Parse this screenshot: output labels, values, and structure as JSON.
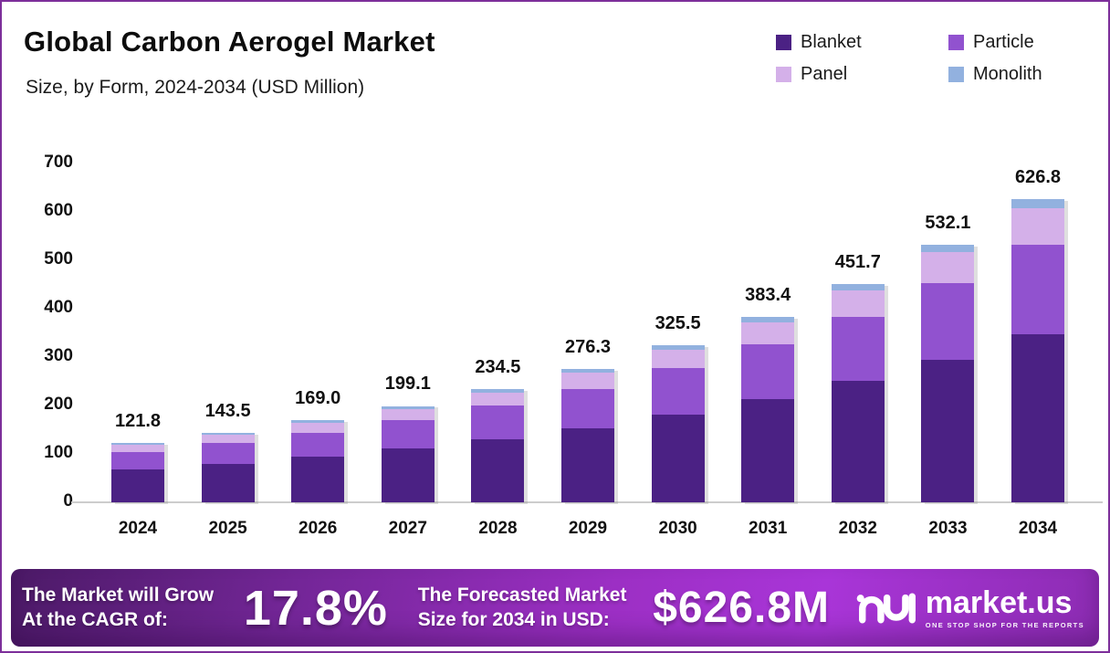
{
  "header": {
    "title": "Global Carbon Aerogel Market",
    "subtitle": "Size, by Form, 2024-2034 (USD Million)"
  },
  "colors": {
    "blanket": "#4b2184",
    "particle": "#9152cf",
    "panel": "#d4b0e9",
    "monolith": "#92b1df",
    "axis_line": "#cdcdcd",
    "border": "#7d2f9a",
    "footer_gradient_start": "#4c1a67",
    "footer_gradient_end": "#a935d8"
  },
  "chart_data": {
    "type": "bar",
    "stacked": true,
    "title": "Global Carbon Aerogel Market",
    "subtitle": "Size, by Form, 2024-2034 (USD Million)",
    "xlabel": "",
    "ylabel": "",
    "ylim": [
      0,
      700
    ],
    "yticks": [
      0,
      100,
      200,
      300,
      400,
      500,
      600,
      700
    ],
    "grid": false,
    "legend_position": "top-right",
    "categories": [
      "2024",
      "2025",
      "2026",
      "2027",
      "2028",
      "2029",
      "2030",
      "2031",
      "2032",
      "2033",
      "2034"
    ],
    "totals": [
      121.8,
      143.5,
      169.0,
      199.1,
      234.5,
      276.3,
      325.5,
      383.4,
      451.7,
      532.1,
      626.8
    ],
    "total_labels": [
      "121.8",
      "143.5",
      "169.0",
      "199.1",
      "234.5",
      "276.3",
      "325.5",
      "383.4",
      "451.7",
      "532.1",
      "626.8"
    ],
    "series": [
      {
        "name": "Blanket",
        "color": "#4b2184",
        "values": [
          67.6,
          79.6,
          93.8,
          110.5,
          130.1,
          153.3,
          180.7,
          212.8,
          250.7,
          295.3,
          347.9
        ]
      },
      {
        "name": "Particle",
        "color": "#9152cf",
        "values": [
          35.9,
          42.3,
          49.9,
          58.7,
          69.2,
          81.5,
          96.0,
          113.1,
          133.3,
          157.0,
          184.9
        ]
      },
      {
        "name": "Panel",
        "color": "#d4b0e9",
        "values": [
          14.6,
          17.2,
          20.3,
          23.9,
          28.1,
          33.2,
          39.1,
          46.0,
          54.2,
          63.9,
          75.2
        ]
      },
      {
        "name": "Monolith",
        "color": "#92b1df",
        "values": [
          3.7,
          4.4,
          5.0,
          6.0,
          7.1,
          8.3,
          9.7,
          11.5,
          13.5,
          15.9,
          18.8
        ]
      }
    ]
  },
  "footer": {
    "cagr_label_line1": "The Market will Grow",
    "cagr_label_line2": "At the CAGR of:",
    "cagr_value": "17.8%",
    "forecast_label_line1": "The Forecasted Market",
    "forecast_label_line2": "Size for 2034 in USD:",
    "forecast_value": "$626.8M",
    "brand": "market.us",
    "brand_tagline": "ONE STOP SHOP FOR THE REPORTS"
  }
}
